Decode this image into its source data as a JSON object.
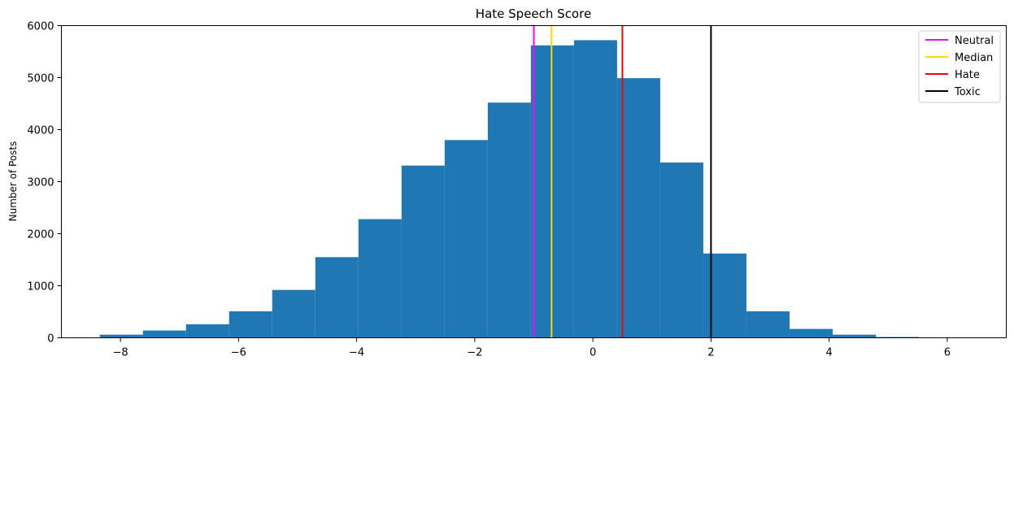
{
  "chart_data": {
    "type": "histogram",
    "title": "Hate Speech Score",
    "xlabel": "",
    "ylabel": "Number of Posts",
    "xlim": [
      -9.0,
      7.0
    ],
    "ylim": [
      0,
      6000
    ],
    "xticks": [
      -8,
      -6,
      -4,
      -2,
      0,
      2,
      4,
      6
    ],
    "yticks": [
      0,
      1000,
      2000,
      3000,
      4000,
      5000,
      6000
    ],
    "grid": false,
    "bar_color": "#1f77b4",
    "bins": [
      {
        "x0": -8.35,
        "x1": -7.62,
        "count": 60
      },
      {
        "x0": -7.62,
        "x1": -6.89,
        "count": 140
      },
      {
        "x0": -6.89,
        "x1": -6.16,
        "count": 260
      },
      {
        "x0": -6.16,
        "x1": -5.43,
        "count": 510
      },
      {
        "x0": -5.43,
        "x1": -4.7,
        "count": 920
      },
      {
        "x0": -4.7,
        "x1": -3.97,
        "count": 1550
      },
      {
        "x0": -3.97,
        "x1": -3.24,
        "count": 2280
      },
      {
        "x0": -3.24,
        "x1": -2.51,
        "count": 3310
      },
      {
        "x0": -2.51,
        "x1": -1.78,
        "count": 3800
      },
      {
        "x0": -1.78,
        "x1": -1.05,
        "count": 4520
      },
      {
        "x0": -1.05,
        "x1": -0.32,
        "count": 5620
      },
      {
        "x0": -0.32,
        "x1": 0.41,
        "count": 5720
      },
      {
        "x0": 0.41,
        "x1": 1.14,
        "count": 4990
      },
      {
        "x0": 1.14,
        "x1": 1.87,
        "count": 3370
      },
      {
        "x0": 1.87,
        "x1": 2.6,
        "count": 1620
      },
      {
        "x0": 2.6,
        "x1": 3.33,
        "count": 510
      },
      {
        "x0": 3.33,
        "x1": 4.06,
        "count": 170
      },
      {
        "x0": 4.06,
        "x1": 4.79,
        "count": 60
      },
      {
        "x0": 4.79,
        "x1": 5.52,
        "count": 15
      },
      {
        "x0": 5.52,
        "x1": 6.25,
        "count": 5
      }
    ],
    "vlines": [
      {
        "name": "Neutral",
        "x": -1.0,
        "color": "#ff00ff"
      },
      {
        "name": "Median",
        "x": -0.7,
        "color": "#ffd700"
      },
      {
        "name": "Hate",
        "x": 0.5,
        "color": "#ff0000"
      },
      {
        "name": "Toxic",
        "x": 2.0,
        "color": "#000000"
      }
    ],
    "legend_position": "top-right"
  }
}
